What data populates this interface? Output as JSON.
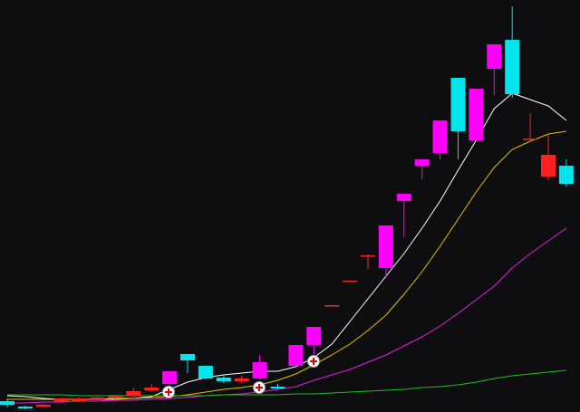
{
  "chart_data": {
    "type": "candlestick",
    "ylim": [
      0,
      455
    ],
    "candles": {
      "open": [
        12,
        6,
        6,
        11,
        12,
        14,
        15,
        18,
        24,
        31,
        64,
        51,
        38,
        34,
        37,
        28,
        51,
        74,
        117,
        144,
        172,
        159,
        233,
        272,
        286,
        369,
        300,
        379,
        411,
        301,
        284,
        272
      ],
      "high": [
        15,
        7,
        9,
        16,
        16,
        17,
        19,
        27,
        31,
        45,
        64,
        51,
        42,
        40,
        63,
        31,
        74,
        94,
        118,
        146,
        174,
        206,
        241,
        279,
        322,
        369,
        357,
        406,
        448,
        330,
        308,
        279
      ],
      "low": [
        5,
        3,
        5,
        10,
        11,
        13,
        14,
        15,
        22,
        29,
        43,
        36,
        32,
        32,
        36,
        25,
        50,
        63,
        117,
        144,
        158,
        148,
        193,
        257,
        279,
        279,
        300,
        350,
        347,
        301,
        256,
        249
      ],
      "close": [
        8,
        4,
        8,
        15,
        15,
        16,
        18,
        23,
        27,
        45,
        57,
        37,
        34,
        37,
        55,
        26,
        74,
        94,
        118,
        145,
        173,
        206,
        241,
        279,
        322,
        310,
        357,
        406,
        351,
        302,
        260,
        252
      ],
      "colors": [
        "#00e5ee",
        "#00e5ee",
        "#ff2020",
        "#ff2020",
        "#ff2020",
        "#ff2020",
        "#ff2020",
        "#ff2020",
        "#ff2020",
        "#ff00ff",
        "#00e5ee",
        "#00e5ee",
        "#00e5ee",
        "#ff2020",
        "#ff00ff",
        "#00e5ee",
        "#ff00ff",
        "#ff00ff",
        "#ff2020",
        "#ff2020",
        "#ff2020",
        "#ff00ff",
        "#ff00ff",
        "#ff00ff",
        "#ff00ff",
        "#00e5ee",
        "#ff00ff",
        "#ff00ff",
        "#00e5ee",
        "#ff2020",
        "#ff2020",
        "#00e5ee"
      ]
    },
    "series": [
      {
        "color": "#ffffff",
        "values": [
          18,
          17,
          15,
          14,
          14,
          14,
          15,
          15,
          17,
          25,
          33,
          38,
          41,
          43,
          45,
          45,
          50,
          60,
          75,
          100,
          125,
          150,
          175,
          203,
          233,
          267,
          300,
          335,
          352,
          345,
          338,
          322
        ]
      },
      {
        "color": "#e8c000",
        "values": [
          14,
          14,
          14,
          14,
          14,
          14,
          14,
          15,
          16,
          17,
          19,
          22,
          25,
          27,
          30,
          35,
          42,
          52,
          63,
          75,
          90,
          107,
          130,
          155,
          183,
          213,
          243,
          270,
          290,
          299,
          307,
          310
        ]
      },
      {
        "color": "#e020e0",
        "values": [
          10,
          10,
          11,
          11,
          12,
          12,
          13,
          13,
          14,
          15,
          16,
          18,
          19,
          20,
          22,
          25,
          28,
          35,
          41,
          47,
          55,
          63,
          73,
          83,
          95,
          109,
          124,
          139,
          159,
          175,
          189,
          203
        ]
      },
      {
        "color": "#20c020",
        "values": [
          19,
          19,
          19,
          19,
          18,
          18,
          18,
          18,
          18,
          18,
          18,
          18,
          19,
          19,
          19,
          19,
          20,
          20,
          21,
          22,
          23,
          24,
          25,
          27,
          28,
          30,
          33,
          37,
          40,
          42,
          44,
          46
        ]
      }
    ]
  }
}
